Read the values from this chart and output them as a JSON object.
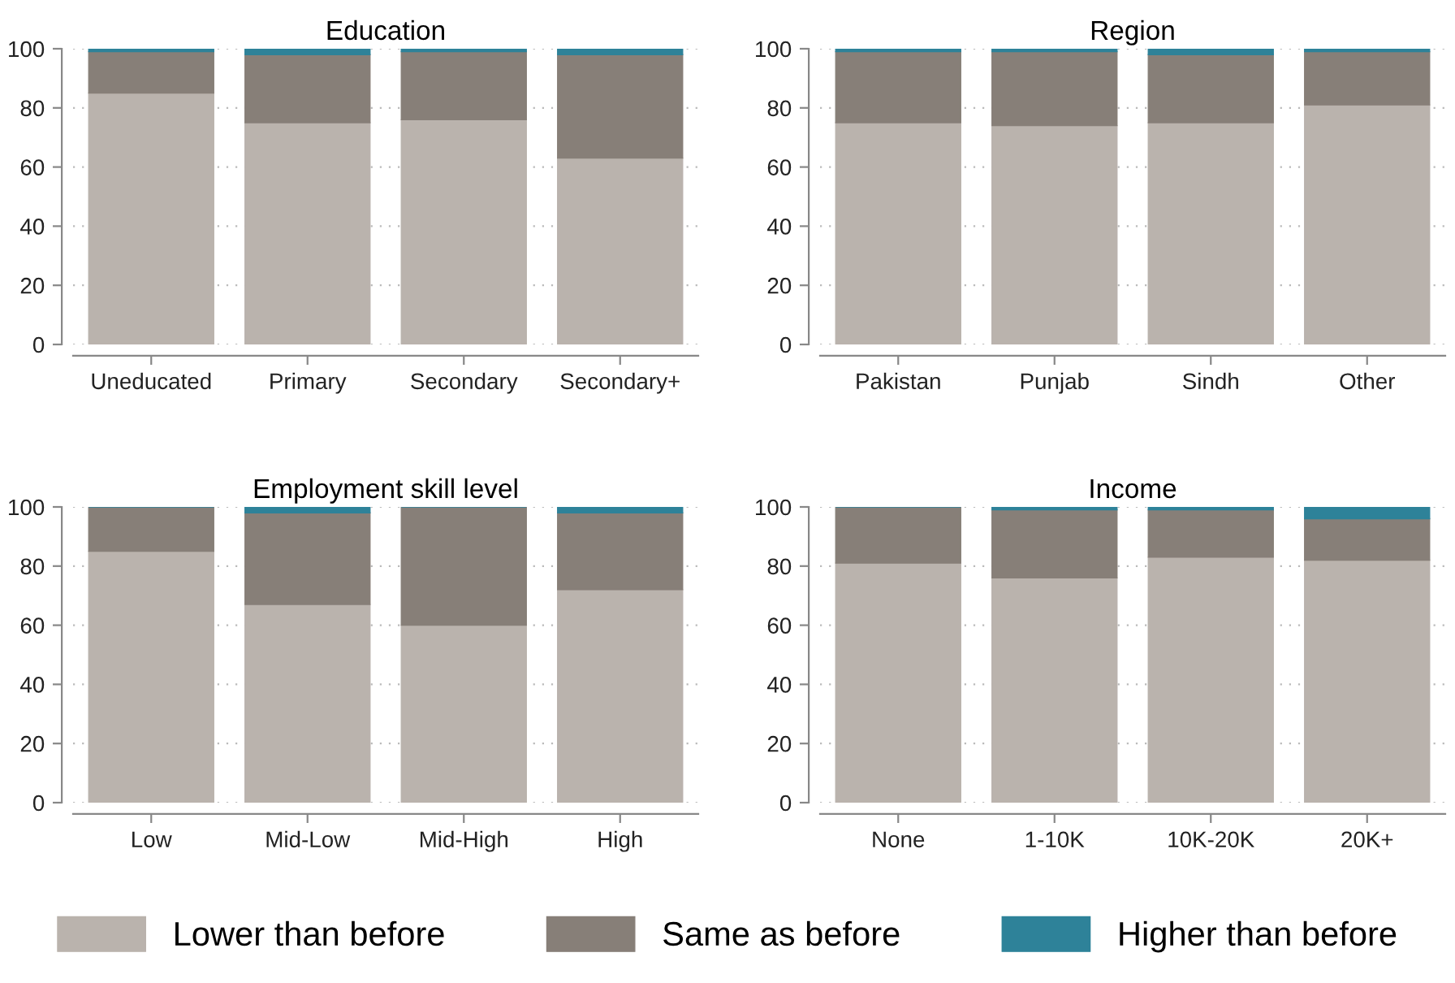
{
  "chart_data": [
    {
      "type": "bar",
      "title": "Education",
      "stacked": true,
      "categories": [
        "Uneducated",
        "Primary",
        "Secondary",
        "Secondary+"
      ],
      "ylim": [
        0,
        100
      ],
      "yticks": [
        0,
        20,
        40,
        60,
        80,
        100
      ],
      "grid": true,
      "legend": "bottom",
      "series": [
        {
          "name": "Lower than before",
          "color": "#bab3ad",
          "values": [
            85,
            75,
            76,
            63
          ]
        },
        {
          "name": "Same as before",
          "color": "#877f78",
          "values": [
            14,
            23,
            23,
            35
          ]
        },
        {
          "name": "Higher than before",
          "color": "#2e8299",
          "values": [
            1,
            2,
            1,
            2
          ]
        }
      ]
    },
    {
      "type": "bar",
      "title": "Region",
      "stacked": true,
      "categories": [
        "Pakistan",
        "Punjab",
        "Sindh",
        "Other"
      ],
      "ylim": [
        0,
        100
      ],
      "yticks": [
        0,
        20,
        40,
        60,
        80,
        100
      ],
      "grid": true,
      "series": [
        {
          "color": "#bab3ad",
          "values": [
            75,
            74,
            75,
            81
          ]
        },
        {
          "color": "#877f78",
          "values": [
            24,
            25,
            23,
            18
          ]
        },
        {
          "color": "#2e8299",
          "values": [
            1,
            1,
            2,
            1
          ]
        }
      ]
    },
    {
      "type": "bar",
      "title": "Employment skill level",
      "stacked": true,
      "categories": [
        "Low",
        "Mid-Low",
        "Mid-High",
        "High"
      ],
      "ylim": [
        0,
        100
      ],
      "yticks": [
        0,
        20,
        40,
        60,
        80,
        100
      ],
      "grid": true,
      "series": [
        {
          "color": "#bab3ad",
          "values": [
            85,
            67,
            60,
            72
          ]
        },
        {
          "color": "#877f78",
          "values": [
            15,
            31,
            40,
            26
          ]
        },
        {
          "color": "#2e8299",
          "values": [
            0,
            2,
            0,
            2
          ]
        }
      ]
    },
    {
      "type": "bar",
      "title": "Income",
      "stacked": true,
      "categories": [
        "None",
        "1-10K",
        "10K-20K",
        "20K+"
      ],
      "ylim": [
        0,
        100
      ],
      "yticks": [
        0,
        20,
        40,
        60,
        80,
        100
      ],
      "grid": true,
      "series": [
        {
          "color": "#bab3ad",
          "values": [
            81,
            76,
            83,
            82
          ]
        },
        {
          "color": "#877f78",
          "values": [
            19,
            23,
            16,
            14
          ]
        },
        {
          "color": "#2e8299",
          "values": [
            0,
            1,
            1,
            4
          ]
        }
      ]
    }
  ]
}
